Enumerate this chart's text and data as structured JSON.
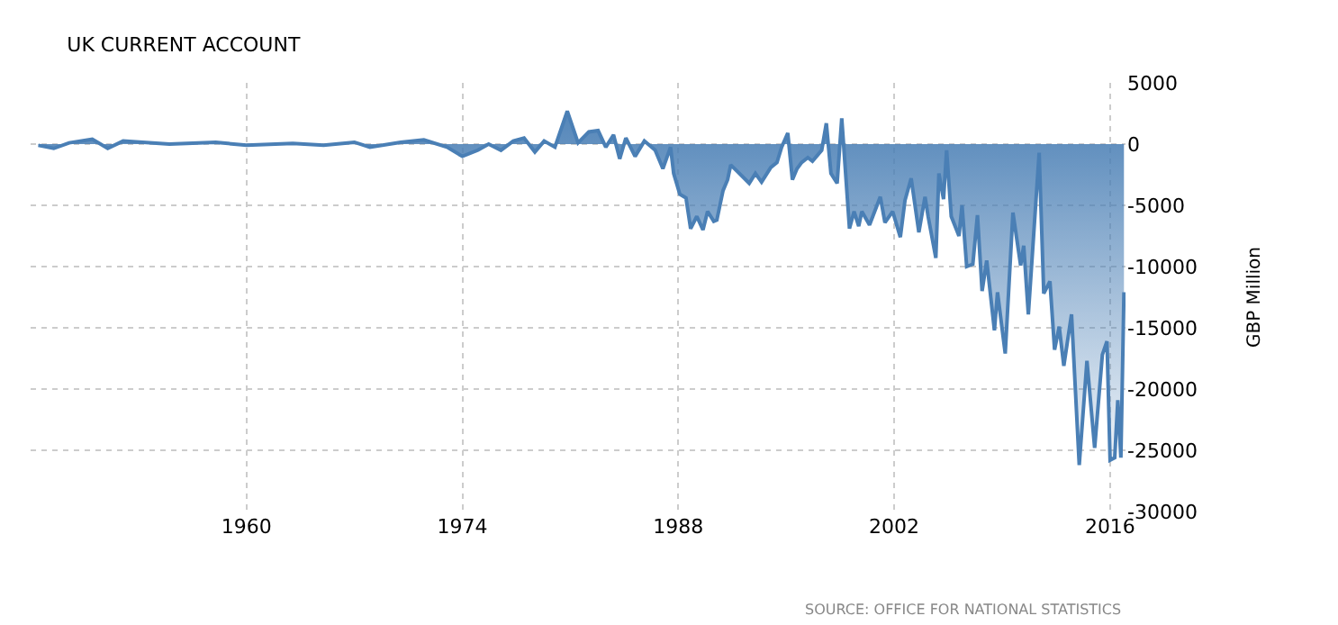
{
  "chart_data": {
    "type": "area",
    "title": "UK CURRENT ACCOUNT",
    "ylabel": "GBP Million",
    "annotations": [
      "SOURCE: OFFICE FOR NATIONAL STATISTICS"
    ],
    "series": [
      {
        "color": "#4a7fb5",
        "x": [
          1946.5,
          1947.5,
          1948.5,
          1950,
          1951,
          1952,
          1955,
          1958,
          1960,
          1963,
          1965,
          1967,
          1968,
          1970,
          1971.5,
          1973,
          1974,
          1975,
          1975.7,
          1976.5,
          1977.3,
          1978,
          1978.7,
          1979.3,
          1980,
          1980.8,
          1981.5,
          1982.2,
          1982.8,
          1983.3,
          1983.8,
          1984.2,
          1984.6,
          1985.2,
          1985.8,
          1986.5,
          1987,
          1987.5,
          1987.7,
          1988.1,
          1988.5,
          1988.8,
          1989.2,
          1989.6,
          1989.9,
          1990.3,
          1990.5,
          1990.9,
          1991.2,
          1991.4,
          1991.8,
          1992.6,
          1993.0,
          1993.4,
          1994.0,
          1994.4,
          1994.7,
          1995.1,
          1995.4,
          1995.7,
          1996.0,
          1996.4,
          1996.7,
          1997.3,
          1997.6,
          1997.9,
          1998.3,
          1998.6,
          1999.1,
          1999.4,
          1999.7,
          1999.9,
          2000.4,
          2001.1,
          2001.4,
          2001.9,
          2002.4,
          2002.7,
          2003.1,
          2003.6,
          2004.0,
          2004.2,
          2004.7,
          2004.9,
          2005.2,
          2005.4,
          2005.7,
          2006.2,
          2006.4,
          2006.7,
          2007.1,
          2007.4,
          2007.7,
          2008.0,
          2008.5,
          2008.7,
          2009.2,
          2009.7,
          2010.2,
          2010.4,
          2010.7,
          2011.4,
          2011.7,
          2012.1,
          2012.4,
          2012.7,
          2013.0,
          2013.5,
          2014.0,
          2014.5,
          2015.0,
          2015.5,
          2015.8,
          2016.0,
          2016.3,
          2016.5,
          2016.7,
          2016.9
        ],
        "values": [
          -100,
          -350,
          100,
          400,
          -350,
          250,
          0,
          150,
          -100,
          50,
          -100,
          150,
          -250,
          150,
          350,
          -250,
          -1000,
          -500,
          0,
          -500,
          250,
          500,
          -650,
          250,
          -250,
          2700,
          100,
          1000,
          1100,
          -250,
          750,
          -1200,
          500,
          -1000,
          250,
          -500,
          -2000,
          -250,
          -2400,
          -4100,
          -4400,
          -6900,
          -5900,
          -7000,
          -5500,
          -6300,
          -6200,
          -3800,
          -2900,
          -1700,
          -2200,
          -3200,
          -2400,
          -3100,
          -1900,
          -1500,
          -250,
          900,
          -2900,
          -2000,
          -1500,
          -1100,
          -1400,
          -500,
          1700,
          -2400,
          -3200,
          2100,
          -6900,
          -5500,
          -6700,
          -5500,
          -6600,
          -4300,
          -6400,
          -5500,
          -7600,
          -4600,
          -2800,
          -7200,
          -4300,
          -5900,
          -9300,
          -2400,
          -4500,
          -500,
          -5900,
          -7500,
          -5000,
          -10000,
          -9800,
          -5800,
          -12000,
          -9500,
          -15200,
          -12100,
          -17100,
          -5600,
          -9900,
          -8300,
          -13900,
          -700,
          -12200,
          -11200,
          -16800,
          -14900,
          -18100,
          -13900,
          -26200,
          -17700,
          -24800,
          -17200,
          -16100,
          -25800,
          -25600,
          -20900,
          -25600,
          -12100
        ]
      }
    ],
    "xlim": [
      1946,
      2017
    ],
    "xticks": [
      1960,
      1974,
      1988,
      2002,
      2016
    ],
    "ylim": [
      -30000,
      5000
    ],
    "yticks": [
      5000,
      0,
      -5000,
      -10000,
      -15000,
      -20000,
      -25000,
      -30000
    ],
    "grid": true
  }
}
